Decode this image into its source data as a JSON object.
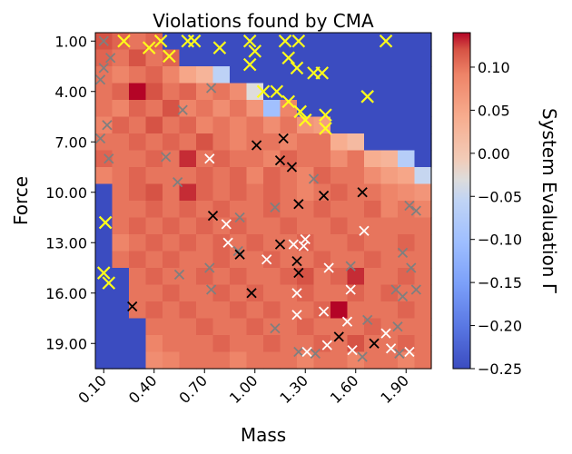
{
  "chart_data": {
    "type": "heatmap",
    "title": "Violations found by CMA",
    "xlabel": "Mass",
    "ylabel": "Force",
    "colorbar_label": "System Evaluation Γ",
    "x_ticks": [
      "0.10",
      "0.40",
      "0.70",
      "1.00",
      "1.30",
      "1.60",
      "1.90"
    ],
    "y_ticks": [
      "1.00",
      "4.00",
      "7.00",
      "10.00",
      "13.00",
      "16.00",
      "19.00"
    ],
    "colorbar_ticks": [
      "0.10",
      "0.05",
      "0.00",
      "−0.05",
      "−0.10",
      "−0.15",
      "−0.20",
      "−0.25"
    ],
    "mass_range": [
      0.1,
      2.0
    ],
    "force_range": [
      1.0,
      20.0
    ],
    "color_range": [
      -0.25,
      0.14
    ],
    "colormap": "coolwarm",
    "grid_mass_step": 0.1,
    "grid_force_step": 1.0,
    "heatmap_rows": [
      {
        "force": 1,
        "values": [
          0.12,
          0.11,
          0.1,
          0.11,
          -0.25,
          -0.25,
          -0.25,
          -0.25,
          -0.25,
          -0.25,
          -0.25,
          -0.25,
          -0.25,
          -0.25,
          -0.25,
          -0.25,
          -0.25,
          -0.25,
          -0.25,
          -0.25
        ]
      },
      {
        "force": 2,
        "values": [
          0.11,
          0.1,
          0.12,
          0.1,
          0.11,
          -0.25,
          -0.25,
          -0.25,
          -0.25,
          -0.25,
          -0.25,
          -0.25,
          -0.25,
          -0.25,
          -0.25,
          -0.25,
          -0.25,
          -0.25,
          -0.25,
          -0.25
        ]
      },
      {
        "force": 3,
        "values": [
          0.1,
          0.09,
          0.1,
          0.11,
          0.09,
          0.05,
          0.03,
          -0.06,
          -0.25,
          -0.25,
          -0.25,
          -0.25,
          -0.25,
          -0.25,
          -0.25,
          -0.25,
          -0.25,
          -0.25,
          -0.25,
          -0.25
        ]
      },
      {
        "force": 4,
        "values": [
          0.1,
          0.11,
          0.14,
          0.12,
          0.1,
          0.11,
          0.09,
          0.1,
          0.08,
          -0.03,
          -0.25,
          -0.25,
          -0.25,
          -0.25,
          -0.25,
          -0.25,
          -0.25,
          -0.25,
          -0.25,
          -0.25
        ]
      },
      {
        "force": 5,
        "values": [
          0.1,
          0.09,
          0.11,
          0.1,
          0.12,
          0.09,
          0.1,
          0.08,
          0.1,
          0.07,
          -0.1,
          0.09,
          -0.25,
          -0.25,
          -0.25,
          -0.25,
          -0.25,
          -0.25,
          -0.25,
          -0.25
        ]
      },
      {
        "force": 6,
        "values": [
          0.09,
          0.11,
          0.1,
          0.12,
          0.1,
          0.11,
          0.09,
          0.1,
          0.09,
          0.1,
          0.08,
          0.1,
          0.07,
          0.06,
          -0.25,
          -0.25,
          -0.25,
          -0.25,
          -0.25,
          -0.25
        ]
      },
      {
        "force": 7,
        "values": [
          0.1,
          0.1,
          0.11,
          0.1,
          0.11,
          0.1,
          0.12,
          0.1,
          0.09,
          0.1,
          0.1,
          0.09,
          0.1,
          0.1,
          0.04,
          0.02,
          -0.25,
          -0.25,
          -0.25,
          -0.25
        ]
      },
      {
        "force": 8,
        "values": [
          0.11,
          0.1,
          0.1,
          0.11,
          0.1,
          0.13,
          0.1,
          0.11,
          0.1,
          0.1,
          0.09,
          0.11,
          0.1,
          0.1,
          0.08,
          0.1,
          0.04,
          0.03,
          -0.07,
          -0.25
        ]
      },
      {
        "force": 9,
        "values": [
          0.09,
          0.1,
          0.11,
          0.1,
          0.1,
          0.1,
          0.11,
          0.1,
          0.11,
          0.09,
          0.11,
          0.1,
          0.09,
          0.11,
          0.1,
          0.1,
          0.08,
          0.06,
          0.05,
          -0.05
        ]
      },
      {
        "force": 10,
        "values": [
          -0.25,
          0.1,
          0.11,
          0.12,
          0.1,
          0.13,
          0.11,
          0.1,
          0.11,
          0.1,
          0.11,
          0.1,
          0.09,
          0.1,
          0.11,
          0.1,
          0.1,
          0.09,
          0.08,
          0.07
        ]
      },
      {
        "force": 11,
        "values": [
          -0.25,
          0.1,
          0.1,
          0.11,
          0.1,
          0.11,
          0.1,
          0.11,
          0.1,
          0.1,
          0.11,
          0.1,
          0.1,
          0.11,
          0.1,
          0.1,
          0.11,
          0.09,
          0.1,
          0.09
        ]
      },
      {
        "force": 12,
        "values": [
          -0.25,
          0.1,
          0.11,
          0.1,
          0.11,
          0.1,
          0.11,
          0.1,
          0.11,
          0.1,
          0.1,
          0.11,
          0.1,
          0.1,
          0.11,
          0.1,
          0.1,
          0.1,
          0.1,
          0.1
        ]
      },
      {
        "force": 13,
        "values": [
          -0.25,
          0.09,
          0.1,
          0.11,
          0.1,
          0.11,
          0.1,
          0.11,
          0.1,
          0.11,
          0.1,
          0.1,
          0.11,
          0.1,
          0.1,
          0.11,
          0.1,
          0.1,
          0.11,
          0.1
        ]
      },
      {
        "force": 14,
        "values": [
          -0.25,
          0.1,
          0.11,
          0.1,
          0.11,
          0.1,
          0.1,
          0.11,
          0.1,
          0.1,
          0.11,
          0.1,
          0.1,
          0.11,
          0.1,
          0.1,
          0.11,
          0.1,
          0.1,
          0.1
        ]
      },
      {
        "force": 15,
        "values": [
          -0.25,
          -0.25,
          0.1,
          0.11,
          0.1,
          0.1,
          0.11,
          0.1,
          0.11,
          0.1,
          0.1,
          0.11,
          0.12,
          0.1,
          0.11,
          0.13,
          0.1,
          0.1,
          0.11,
          0.1
        ]
      },
      {
        "force": 16,
        "values": [
          -0.25,
          -0.25,
          0.1,
          0.1,
          0.11,
          0.1,
          0.1,
          0.11,
          0.1,
          0.11,
          0.1,
          0.1,
          0.11,
          0.1,
          0.1,
          0.11,
          0.1,
          0.11,
          0.1,
          0.1
        ]
      },
      {
        "force": 17,
        "values": [
          -0.25,
          -0.25,
          0.1,
          0.11,
          0.1,
          0.11,
          0.1,
          0.1,
          0.11,
          0.1,
          0.11,
          0.1,
          0.1,
          0.11,
          0.14,
          0.1,
          0.1,
          0.1,
          0.11,
          0.1
        ]
      },
      {
        "force": 18,
        "values": [
          -0.25,
          -0.25,
          -0.25,
          0.1,
          0.1,
          0.1,
          0.11,
          0.1,
          0.1,
          0.11,
          0.1,
          0.1,
          0.11,
          0.1,
          0.1,
          0.1,
          0.11,
          0.1,
          0.1,
          0.1
        ]
      },
      {
        "force": 19,
        "values": [
          -0.25,
          -0.25,
          -0.25,
          0.09,
          0.1,
          0.1,
          0.1,
          0.11,
          0.1,
          0.1,
          0.11,
          0.1,
          0.1,
          0.11,
          0.1,
          0.12,
          0.1,
          0.1,
          0.11,
          0.1
        ]
      },
      {
        "force": 20,
        "values": [
          -0.25,
          -0.25,
          -0.25,
          0.08,
          0.09,
          0.1,
          0.1,
          0.1,
          0.09,
          0.1,
          0.1,
          0.1,
          0.09,
          0.1,
          0.1,
          0.09,
          0.1,
          0.1,
          0.09,
          0.1
        ]
      }
    ],
    "markers": [
      {
        "mass": 0.1,
        "force": 1.0,
        "color": "gray"
      },
      {
        "mass": 0.22,
        "force": 1.0,
        "color": "yellow"
      },
      {
        "mass": 0.37,
        "force": 1.4,
        "color": "yellow"
      },
      {
        "mass": 0.44,
        "force": 1.0,
        "color": "yellow"
      },
      {
        "mass": 0.49,
        "force": 1.9,
        "color": "yellow"
      },
      {
        "mass": 0.6,
        "force": 1.0,
        "color": "yellow"
      },
      {
        "mass": 0.64,
        "force": 1.0,
        "color": "yellow"
      },
      {
        "mass": 0.79,
        "force": 1.4,
        "color": "yellow"
      },
      {
        "mass": 0.97,
        "force": 1.0,
        "color": "yellow"
      },
      {
        "mass": 1.0,
        "force": 1.6,
        "color": "yellow"
      },
      {
        "mass": 0.97,
        "force": 2.4,
        "color": "yellow"
      },
      {
        "mass": 1.18,
        "force": 1.0,
        "color": "yellow"
      },
      {
        "mass": 1.26,
        "force": 1.0,
        "color": "yellow"
      },
      {
        "mass": 1.2,
        "force": 2.0,
        "color": "yellow"
      },
      {
        "mass": 1.25,
        "force": 2.6,
        "color": "yellow"
      },
      {
        "mass": 1.35,
        "force": 2.9,
        "color": "yellow"
      },
      {
        "mass": 1.4,
        "force": 2.9,
        "color": "yellow"
      },
      {
        "mass": 1.78,
        "force": 1.0,
        "color": "yellow"
      },
      {
        "mass": 0.1,
        "force": 2.6,
        "color": "gray"
      },
      {
        "mass": 0.08,
        "force": 3.3,
        "color": "gray"
      },
      {
        "mass": 0.14,
        "force": 2.0,
        "color": "gray"
      },
      {
        "mass": 1.05,
        "force": 4.0,
        "color": "yellow"
      },
      {
        "mass": 1.13,
        "force": 4.0,
        "color": "yellow"
      },
      {
        "mass": 1.2,
        "force": 4.6,
        "color": "yellow"
      },
      {
        "mass": 1.27,
        "force": 5.2,
        "color": "yellow"
      },
      {
        "mass": 1.3,
        "force": 5.7,
        "color": "yellow"
      },
      {
        "mass": 1.42,
        "force": 5.4,
        "color": "yellow"
      },
      {
        "mass": 1.42,
        "force": 6.2,
        "color": "yellow"
      },
      {
        "mass": 1.67,
        "force": 4.3,
        "color": "yellow"
      },
      {
        "mass": 0.74,
        "force": 3.8,
        "color": "gray"
      },
      {
        "mass": 0.57,
        "force": 5.1,
        "color": "gray"
      },
      {
        "mass": 0.08,
        "force": 6.8,
        "color": "gray"
      },
      {
        "mass": 0.12,
        "force": 6.0,
        "color": "gray"
      },
      {
        "mass": 0.13,
        "force": 8.0,
        "color": "gray"
      },
      {
        "mass": 0.47,
        "force": 7.9,
        "color": "gray"
      },
      {
        "mass": 0.73,
        "force": 8.0,
        "color": "white"
      },
      {
        "mass": 1.01,
        "force": 7.2,
        "color": "black"
      },
      {
        "mass": 1.17,
        "force": 6.8,
        "color": "black"
      },
      {
        "mass": 1.15,
        "force": 8.1,
        "color": "black"
      },
      {
        "mass": 1.22,
        "force": 8.5,
        "color": "black"
      },
      {
        "mass": 0.54,
        "force": 9.4,
        "color": "gray"
      },
      {
        "mass": 1.35,
        "force": 9.2,
        "color": "gray"
      },
      {
        "mass": 1.41,
        "force": 10.2,
        "color": "black"
      },
      {
        "mass": 1.64,
        "force": 10.0,
        "color": "black"
      },
      {
        "mass": 0.11,
        "force": 11.8,
        "color": "yellow"
      },
      {
        "mass": 0.75,
        "force": 11.4,
        "color": "black"
      },
      {
        "mass": 0.83,
        "force": 11.9,
        "color": "white"
      },
      {
        "mass": 0.91,
        "force": 11.5,
        "color": "gray"
      },
      {
        "mass": 1.12,
        "force": 10.9,
        "color": "gray"
      },
      {
        "mass": 1.26,
        "force": 10.7,
        "color": "black"
      },
      {
        "mass": 1.92,
        "force": 10.8,
        "color": "gray"
      },
      {
        "mass": 1.96,
        "force": 11.1,
        "color": "gray"
      },
      {
        "mass": 0.84,
        "force": 13.0,
        "color": "white"
      },
      {
        "mass": 0.9,
        "force": 13.5,
        "color": "gray"
      },
      {
        "mass": 0.91,
        "force": 13.7,
        "color": "black"
      },
      {
        "mass": 1.15,
        "force": 13.1,
        "color": "black"
      },
      {
        "mass": 1.23,
        "force": 13.1,
        "color": "white"
      },
      {
        "mass": 1.29,
        "force": 13.2,
        "color": "white"
      },
      {
        "mass": 1.3,
        "force": 12.8,
        "color": "white"
      },
      {
        "mass": 1.07,
        "force": 14.0,
        "color": "white"
      },
      {
        "mass": 1.25,
        "force": 14.1,
        "color": "black"
      },
      {
        "mass": 1.65,
        "force": 12.3,
        "color": "white"
      },
      {
        "mass": 1.88,
        "force": 13.6,
        "color": "gray"
      },
      {
        "mass": 0.1,
        "force": 14.8,
        "color": "yellow"
      },
      {
        "mass": 0.13,
        "force": 15.4,
        "color": "yellow"
      },
      {
        "mass": 0.55,
        "force": 14.9,
        "color": "gray"
      },
      {
        "mass": 0.73,
        "force": 14.5,
        "color": "gray"
      },
      {
        "mass": 1.26,
        "force": 14.8,
        "color": "black"
      },
      {
        "mass": 1.44,
        "force": 14.5,
        "color": "white"
      },
      {
        "mass": 1.57,
        "force": 14.4,
        "color": "gray"
      },
      {
        "mass": 1.93,
        "force": 14.5,
        "color": "gray"
      },
      {
        "mass": 0.27,
        "force": 16.8,
        "color": "black"
      },
      {
        "mass": 0.74,
        "force": 15.8,
        "color": "gray"
      },
      {
        "mass": 0.98,
        "force": 16.0,
        "color": "black"
      },
      {
        "mass": 1.25,
        "force": 16.0,
        "color": "white"
      },
      {
        "mass": 1.57,
        "force": 15.8,
        "color": "white"
      },
      {
        "mass": 1.84,
        "force": 15.8,
        "color": "gray"
      },
      {
        "mass": 1.88,
        "force": 16.2,
        "color": "gray"
      },
      {
        "mass": 1.96,
        "force": 15.8,
        "color": "gray"
      },
      {
        "mass": 1.12,
        "force": 18.1,
        "color": "gray"
      },
      {
        "mass": 1.25,
        "force": 17.3,
        "color": "white"
      },
      {
        "mass": 1.41,
        "force": 17.1,
        "color": "white"
      },
      {
        "mass": 1.55,
        "force": 17.7,
        "color": "white"
      },
      {
        "mass": 1.67,
        "force": 17.6,
        "color": "gray"
      },
      {
        "mass": 1.78,
        "force": 18.4,
        "color": "white"
      },
      {
        "mass": 1.85,
        "force": 18.0,
        "color": "gray"
      },
      {
        "mass": 1.5,
        "force": 18.6,
        "color": "black"
      },
      {
        "mass": 1.26,
        "force": 19.5,
        "color": "gray"
      },
      {
        "mass": 1.31,
        "force": 19.5,
        "color": "white"
      },
      {
        "mass": 1.36,
        "force": 19.6,
        "color": "gray"
      },
      {
        "mass": 1.43,
        "force": 19.1,
        "color": "white"
      },
      {
        "mass": 1.58,
        "force": 19.4,
        "color": "white"
      },
      {
        "mass": 1.64,
        "force": 19.8,
        "color": "gray"
      },
      {
        "mass": 1.71,
        "force": 19.0,
        "color": "black"
      },
      {
        "mass": 1.81,
        "force": 19.3,
        "color": "white"
      },
      {
        "mass": 1.86,
        "force": 19.6,
        "color": "gray"
      },
      {
        "mass": 1.92,
        "force": 19.5,
        "color": "white"
      }
    ]
  }
}
